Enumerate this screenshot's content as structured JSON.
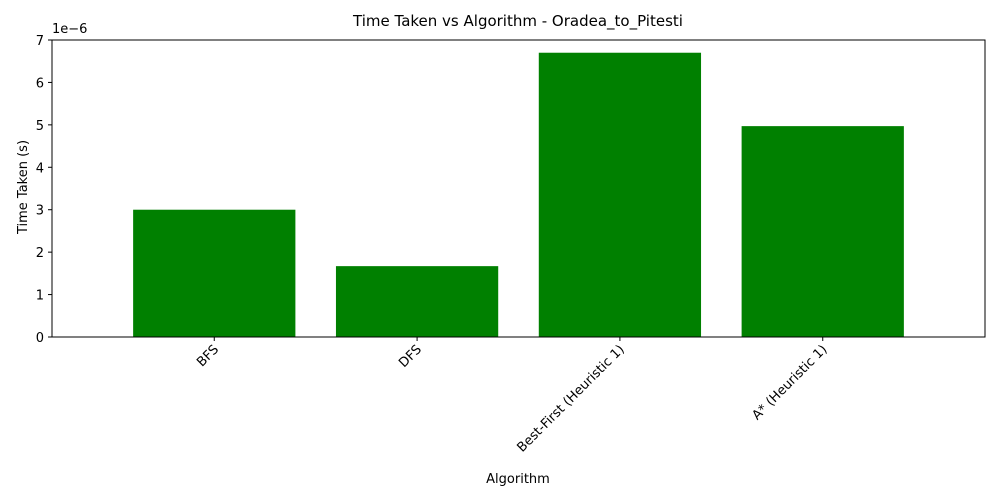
{
  "chart_data": {
    "type": "bar",
    "title": "Time Taken vs Algorithm - Oradea_to_Pitesti",
    "xlabel": "Algorithm",
    "ylabel": "Time Taken (s)",
    "offset_label": "1e−6",
    "categories": [
      "BFS",
      "DFS",
      "Best-First (Heuristic 1)",
      "A* (Heuristic 1)"
    ],
    "values": [
      3e-06,
      1.67e-06,
      6.7e-06,
      4.97e-06
    ],
    "ylim": [
      0,
      7e-06
    ],
    "yticks": [
      0,
      1e-06,
      2e-06,
      3e-06,
      4e-06,
      5e-06,
      6e-06,
      7e-06
    ],
    "ytick_labels": [
      "0",
      "1",
      "2",
      "3",
      "4",
      "5",
      "6",
      "7"
    ],
    "bar_color": "#008000",
    "grid": false
  }
}
